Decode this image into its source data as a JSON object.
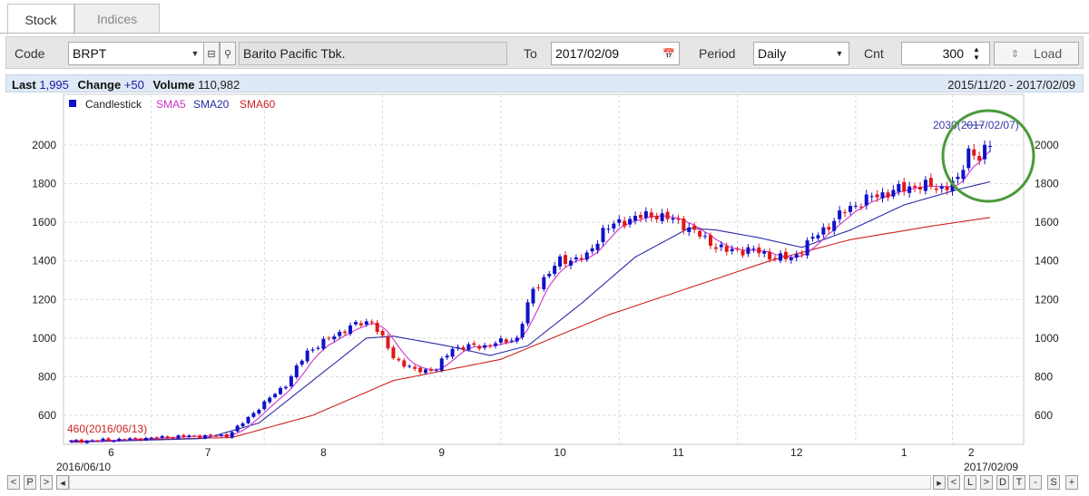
{
  "tabs": [
    {
      "label": "Stock"
    },
    {
      "label": "Indices"
    }
  ],
  "toolbar": {
    "code_label": "Code",
    "code_value": "BRPT",
    "company_name": "Barito Pacific Tbk.",
    "to_label": "To",
    "to_value": "2017/02/09",
    "period_label": "Period",
    "period_value": "Daily",
    "cnt_label": "Cnt",
    "cnt_value": "300",
    "load_label": "Load"
  },
  "info": {
    "last_label": "Last",
    "last_value": "1,995",
    "change_label": "Change",
    "change_value": "+50",
    "volume_label": "Volume",
    "volume_value": "110,982",
    "date_range": "2015/11/20 - 2017/02/09"
  },
  "legend": [
    {
      "label": "Candlestick",
      "color": "#1010c8"
    },
    {
      "label": "SMA5",
      "color": "#cc33cc"
    },
    {
      "label": "SMA20",
      "color": "#2a2aa8"
    },
    {
      "label": "SMA60",
      "color": "#cc2222"
    }
  ],
  "annotations": {
    "high_label": "2030(2017/02/07)",
    "low_label": "460(2016/06/13)",
    "highlight_color": "#4a9a3a"
  },
  "nav": {
    "start_date": "2016/06/10",
    "end_date": "2017/02/09",
    "left_buttons": [
      "<",
      "P",
      ">"
    ],
    "right_buttons": [
      "<",
      "L",
      ">",
      "D",
      "T",
      "-",
      "S",
      "+"
    ]
  },
  "chart_data": {
    "type": "candlestick",
    "title": "",
    "xlabel": "",
    "ylabel": "",
    "ylim": [
      420,
      2100
    ],
    "yticks": [
      600,
      800,
      1000,
      1200,
      1400,
      1600,
      1800,
      2000
    ],
    "month_labels": [
      "6",
      "7",
      "8",
      "9",
      "10",
      "11",
      "12",
      "1",
      "2"
    ],
    "month_starts": [
      0,
      15,
      36,
      58,
      80,
      102,
      124,
      146,
      164
    ],
    "n_bars": 172,
    "close_anchors": [
      [
        0,
        465
      ],
      [
        10,
        475
      ],
      [
        20,
        490
      ],
      [
        29,
        495
      ],
      [
        32,
        560
      ],
      [
        35,
        640
      ],
      [
        40,
        760
      ],
      [
        44,
        930
      ],
      [
        47,
        980
      ],
      [
        52,
        1060
      ],
      [
        56,
        1090
      ],
      [
        60,
        900
      ],
      [
        64,
        830
      ],
      [
        68,
        840
      ],
      [
        71,
        950
      ],
      [
        77,
        960
      ],
      [
        83,
        1000
      ],
      [
        86,
        1250
      ],
      [
        91,
        1400
      ],
      [
        96,
        1420
      ],
      [
        99,
        1560
      ],
      [
        104,
        1620
      ],
      [
        109,
        1640
      ],
      [
        114,
        1590
      ],
      [
        118,
        1510
      ],
      [
        122,
        1450
      ],
      [
        126,
        1460
      ],
      [
        131,
        1420
      ],
      [
        134,
        1410
      ],
      [
        139,
        1540
      ],
      [
        145,
        1680
      ],
      [
        150,
        1740
      ],
      [
        157,
        1790
      ],
      [
        162,
        1780
      ],
      [
        165,
        1810
      ],
      [
        167,
        1980
      ],
      [
        169,
        1930
      ],
      [
        171,
        1995
      ]
    ],
    "sma20_anchors": [
      [
        0,
        460
      ],
      [
        25,
        480
      ],
      [
        35,
        560
      ],
      [
        45,
        780
      ],
      [
        55,
        1000
      ],
      [
        60,
        1010
      ],
      [
        70,
        960
      ],
      [
        78,
        910
      ],
      [
        85,
        960
      ],
      [
        95,
        1180
      ],
      [
        105,
        1420
      ],
      [
        115,
        1570
      ],
      [
        120,
        1560
      ],
      [
        128,
        1520
      ],
      [
        136,
        1470
      ],
      [
        145,
        1560
      ],
      [
        155,
        1690
      ],
      [
        165,
        1770
      ],
      [
        171,
        1810
      ]
    ],
    "sma60_anchors": [
      [
        0,
        465
      ],
      [
        30,
        485
      ],
      [
        45,
        600
      ],
      [
        60,
        780
      ],
      [
        80,
        890
      ],
      [
        100,
        1120
      ],
      [
        115,
        1260
      ],
      [
        130,
        1400
      ],
      [
        145,
        1510
      ],
      [
        160,
        1580
      ],
      [
        171,
        1625
      ]
    ],
    "series": [
      {
        "name": "Candlestick"
      },
      {
        "name": "SMA5"
      },
      {
        "name": "SMA20"
      },
      {
        "name": "SMA60"
      }
    ],
    "high": {
      "value": 2030,
      "date": "2017/02/07"
    },
    "low": {
      "value": 460,
      "date": "2016/06/13"
    }
  }
}
